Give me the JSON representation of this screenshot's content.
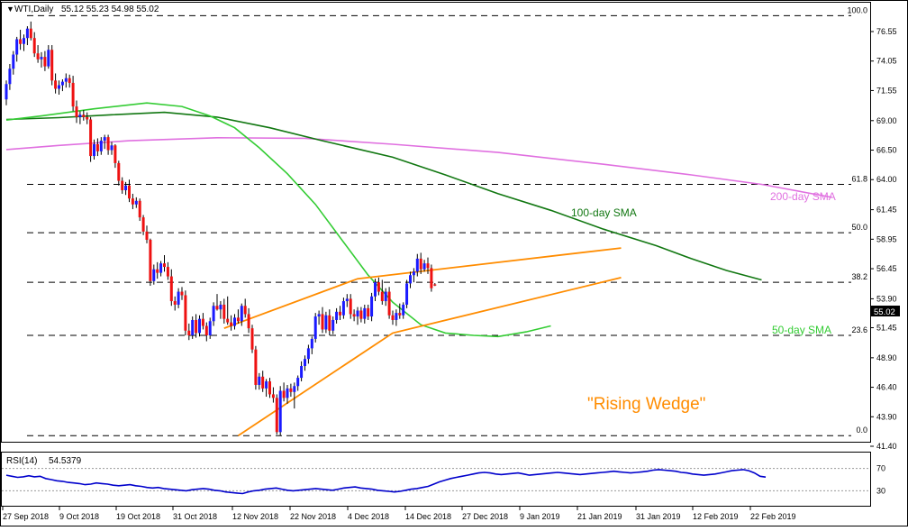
{
  "header": {
    "symbol_label": "WTI,Daily",
    "ohlc": "55.12 55.23 54.98 55.02"
  },
  "rsi_header": {
    "label": "RSI(14)",
    "value": "54.5379"
  },
  "current_price_label": "55.02",
  "annotations": {
    "sma100": "100-day SMA",
    "sma200": "200-day SMA",
    "sma50": "50-day SMA",
    "pattern": "\"Rising Wedge\""
  },
  "colors": {
    "bull": "#1a1aff",
    "bear": "#ee1111",
    "sma50": "#33cc33",
    "sma100": "#117711",
    "sma200": "#e070e0",
    "wedge": "#ff8c00",
    "rsi": "#0000cc"
  },
  "chart_data": {
    "type": "candlestick",
    "title": "WTI,Daily",
    "y_ticks": [
      "76.55",
      "74.05",
      "71.55",
      "69.00",
      "66.50",
      "64.00",
      "61.45",
      "58.95",
      "56.45",
      "53.90",
      "51.45",
      "48.90",
      "46.40",
      "43.90",
      "41.40"
    ],
    "y_range": [
      41.4,
      77.6
    ],
    "x_ticks": [
      "27 Sep 2018",
      "9 Oct 2018",
      "19 Oct 2018",
      "31 Oct 2018",
      "12 Nov 2018",
      "22 Nov 2018",
      "4 Dec 2018",
      "14 Dec 2018",
      "27 Dec 2018",
      "9 Jan 2019",
      "21 Jan 2019",
      "31 Jan 2019",
      "12 Feb 2019",
      "22 Feb 2019"
    ],
    "fib_levels": [
      {
        "label": "100.0",
        "price": 77.9
      },
      {
        "label": "61.8",
        "price": 63.6
      },
      {
        "label": "50.0",
        "price": 59.5
      },
      {
        "label": "38.2",
        "price": 55.3
      },
      {
        "label": "23.6",
        "price": 50.8
      },
      {
        "label": "0.0",
        "price": 42.3
      }
    ],
    "candles": [
      [
        70.8,
        72.4,
        70.3,
        72.1
      ],
      [
        72.1,
        73.8,
        71.6,
        73.4
      ],
      [
        73.4,
        74.9,
        72.9,
        74.6
      ],
      [
        74.6,
        76.1,
        74.0,
        75.9
      ],
      [
        75.9,
        76.7,
        75.0,
        75.5
      ],
      [
        75.5,
        76.3,
        74.9,
        76.0
      ],
      [
        76.0,
        77.0,
        75.4,
        76.8
      ],
      [
        76.8,
        77.4,
        75.8,
        76.0
      ],
      [
        76.0,
        76.5,
        74.4,
        74.7
      ],
      [
        74.7,
        75.4,
        73.9,
        74.2
      ],
      [
        74.2,
        74.8,
        73.5,
        74.4
      ],
      [
        74.4,
        74.9,
        73.2,
        73.6
      ],
      [
        73.6,
        75.4,
        73.4,
        75.0
      ],
      [
        75.0,
        75.4,
        72.0,
        72.4
      ],
      [
        72.4,
        73.0,
        71.3,
        71.7
      ],
      [
        71.7,
        72.4,
        71.2,
        72.0
      ],
      [
        72.0,
        72.5,
        71.5,
        72.3
      ],
      [
        72.3,
        73.0,
        71.8,
        72.6
      ],
      [
        72.6,
        72.9,
        71.8,
        72.2
      ],
      [
        72.2,
        72.8,
        69.8,
        70.2
      ],
      [
        70.2,
        70.7,
        68.8,
        69.3
      ],
      [
        69.3,
        69.8,
        68.7,
        69.5
      ],
      [
        69.5,
        69.9,
        69.0,
        69.3
      ],
      [
        69.3,
        69.7,
        68.7,
        69.1
      ],
      [
        69.1,
        69.3,
        65.5,
        66.0
      ],
      [
        66.0,
        67.4,
        65.7,
        67.0
      ],
      [
        67.0,
        67.5,
        66.0,
        66.4
      ],
      [
        66.4,
        67.6,
        66.1,
        67.3
      ],
      [
        67.3,
        67.8,
        66.6,
        67.6
      ],
      [
        67.6,
        67.8,
        66.1,
        66.5
      ],
      [
        66.5,
        67.2,
        66.1,
        66.9
      ],
      [
        66.9,
        67.0,
        65.0,
        65.4
      ],
      [
        65.4,
        65.6,
        63.5,
        63.9
      ],
      [
        63.9,
        64.2,
        62.8,
        63.1
      ],
      [
        63.1,
        63.8,
        62.7,
        63.5
      ],
      [
        63.5,
        64.0,
        62.1,
        62.4
      ],
      [
        62.4,
        62.8,
        61.5,
        61.9
      ],
      [
        61.9,
        62.5,
        61.6,
        62.2
      ],
      [
        62.2,
        62.4,
        60.5,
        60.8
      ],
      [
        60.8,
        61.0,
        59.3,
        59.6
      ],
      [
        59.6,
        60.1,
        58.6,
        58.9
      ],
      [
        58.9,
        59.0,
        55.0,
        55.4
      ],
      [
        55.4,
        56.8,
        55.1,
        56.4
      ],
      [
        56.4,
        57.0,
        55.6,
        56.1
      ],
      [
        56.1,
        57.1,
        55.8,
        56.9
      ],
      [
        56.9,
        57.6,
        56.2,
        56.6
      ],
      [
        56.6,
        57.0,
        55.5,
        55.8
      ],
      [
        55.8,
        56.4,
        53.3,
        53.7
      ],
      [
        53.7,
        54.1,
        52.9,
        53.4
      ],
      [
        53.4,
        54.8,
        53.1,
        54.5
      ],
      [
        54.5,
        54.9,
        53.8,
        54.2
      ],
      [
        54.2,
        54.6,
        50.8,
        51.2
      ],
      [
        51.2,
        51.8,
        50.4,
        50.8
      ],
      [
        50.8,
        52.4,
        50.5,
        52.1
      ],
      [
        52.1,
        52.6,
        50.6,
        51.0
      ],
      [
        51.0,
        52.5,
        50.7,
        52.2
      ],
      [
        52.2,
        52.7,
        51.3,
        51.6
      ],
      [
        51.6,
        51.9,
        50.3,
        50.8
      ],
      [
        50.8,
        52.3,
        50.5,
        52.0
      ],
      [
        52.0,
        53.6,
        51.6,
        53.3
      ],
      [
        53.3,
        54.3,
        52.9,
        53.0
      ],
      [
        53.0,
        53.7,
        52.2,
        53.4
      ],
      [
        53.4,
        53.9,
        51.8,
        52.2
      ],
      [
        52.2,
        54.1,
        51.7,
        51.9
      ],
      [
        51.9,
        52.5,
        51.2,
        51.6
      ],
      [
        51.6,
        52.6,
        51.3,
        52.3
      ],
      [
        52.3,
        53.0,
        51.8,
        52.0
      ],
      [
        52.0,
        53.5,
        51.6,
        53.3
      ],
      [
        53.3,
        53.9,
        52.3,
        52.6
      ],
      [
        52.6,
        53.1,
        51.0,
        51.4
      ],
      [
        51.4,
        51.7,
        49.3,
        49.6
      ],
      [
        49.6,
        49.9,
        46.2,
        46.6
      ],
      [
        46.6,
        47.6,
        46.2,
        47.3
      ],
      [
        47.3,
        47.8,
        46.0,
        46.3
      ],
      [
        46.3,
        47.1,
        45.6,
        46.9
      ],
      [
        46.9,
        47.2,
        45.5,
        45.8
      ],
      [
        45.8,
        46.4,
        45.1,
        45.5
      ],
      [
        45.5,
        45.8,
        42.4,
        42.6
      ],
      [
        42.6,
        46.5,
        42.3,
        46.1
      ],
      [
        46.1,
        46.8,
        45.2,
        45.5
      ],
      [
        45.5,
        46.6,
        45.0,
        46.3
      ],
      [
        46.3,
        46.7,
        45.6,
        46.0
      ],
      [
        46.0,
        46.8,
        44.6,
        46.5
      ],
      [
        46.5,
        47.4,
        46.1,
        47.2
      ],
      [
        47.2,
        48.6,
        46.9,
        48.2
      ],
      [
        48.2,
        49.1,
        47.8,
        48.8
      ],
      [
        48.8,
        50.0,
        48.4,
        49.7
      ],
      [
        49.7,
        50.7,
        49.2,
        50.5
      ],
      [
        50.5,
        52.7,
        50.2,
        52.4
      ],
      [
        52.4,
        52.9,
        51.7,
        52.6
      ],
      [
        52.6,
        53.2,
        51.0,
        51.3
      ],
      [
        51.3,
        52.8,
        51.0,
        52.5
      ],
      [
        52.5,
        53.0,
        50.8,
        51.2
      ],
      [
        51.2,
        52.4,
        50.9,
        52.1
      ],
      [
        52.1,
        53.1,
        51.8,
        52.8
      ],
      [
        52.8,
        53.3,
        52.1,
        52.5
      ],
      [
        52.5,
        54.0,
        52.2,
        53.7
      ],
      [
        53.7,
        54.3,
        53.2,
        53.9
      ],
      [
        53.9,
        54.3,
        52.2,
        52.6
      ],
      [
        52.6,
        53.0,
        52.0,
        52.4
      ],
      [
        52.4,
        53.2,
        51.7,
        52.9
      ],
      [
        52.9,
        53.2,
        51.9,
        52.2
      ],
      [
        52.2,
        53.4,
        51.8,
        53.1
      ],
      [
        53.1,
        53.4,
        52.1,
        52.4
      ],
      [
        52.4,
        54.4,
        52.0,
        54.1
      ],
      [
        54.1,
        55.6,
        53.7,
        55.3
      ],
      [
        55.3,
        55.7,
        54.2,
        54.5
      ],
      [
        54.5,
        55.5,
        53.4,
        53.7
      ],
      [
        53.7,
        54.8,
        53.3,
        54.5
      ],
      [
        54.5,
        54.9,
        52.2,
        52.5
      ],
      [
        52.5,
        52.9,
        51.7,
        52.1
      ],
      [
        52.1,
        53.0,
        51.6,
        52.7
      ],
      [
        52.7,
        53.5,
        52.2,
        52.5
      ],
      [
        52.5,
        53.6,
        52.2,
        53.4
      ],
      [
        53.4,
        55.5,
        53.1,
        55.2
      ],
      [
        55.2,
        56.2,
        54.8,
        55.9
      ],
      [
        55.9,
        56.5,
        55.3,
        56.2
      ],
      [
        56.2,
        57.7,
        55.8,
        57.3
      ],
      [
        57.3,
        57.8,
        56.0,
        56.4
      ],
      [
        56.4,
        57.2,
        56.2,
        56.9
      ],
      [
        56.9,
        57.4,
        56.0,
        56.5
      ],
      [
        56.5,
        56.8,
        54.5,
        54.8
      ],
      [
        55.12,
        55.23,
        54.98,
        55.02
      ]
    ],
    "sma50": [
      [
        0,
        69.05
      ],
      [
        10,
        69.4
      ],
      [
        25,
        70.0
      ],
      [
        40,
        70.5
      ],
      [
        50,
        70.2
      ],
      [
        58,
        69.4
      ],
      [
        65,
        68.4
      ],
      [
        72,
        66.7
      ],
      [
        80,
        64.5
      ],
      [
        88,
        61.9
      ],
      [
        96,
        58.7
      ],
      [
        103,
        55.9
      ],
      [
        110,
        53.6
      ],
      [
        118,
        51.7
      ],
      [
        125,
        51.0
      ],
      [
        133,
        50.8
      ],
      [
        140,
        50.7
      ],
      [
        148,
        51.1
      ],
      [
        155,
        51.6
      ]
    ],
    "sma100": [
      [
        0,
        69.1
      ],
      [
        15,
        69.25
      ],
      [
        30,
        69.5
      ],
      [
        45,
        69.7
      ],
      [
        60,
        69.3
      ],
      [
        75,
        68.4
      ],
      [
        90,
        67.3
      ],
      [
        110,
        65.9
      ],
      [
        125,
        64.4
      ],
      [
        140,
        62.8
      ],
      [
        155,
        61.4
      ],
      [
        170,
        59.8
      ],
      [
        185,
        58.4
      ],
      [
        195,
        57.3
      ],
      [
        205,
        56.3
      ],
      [
        215,
        55.5
      ]
    ],
    "sma200": [
      [
        0,
        66.55
      ],
      [
        15,
        66.9
      ],
      [
        35,
        67.3
      ],
      [
        60,
        67.55
      ],
      [
        85,
        67.5
      ],
      [
        110,
        67.0
      ],
      [
        140,
        66.3
      ],
      [
        170,
        65.3
      ],
      [
        195,
        64.4
      ],
      [
        215,
        63.6
      ],
      [
        235,
        62.5
      ]
    ],
    "wedge_upper": [
      [
        62,
        51.4
      ],
      [
        100,
        55.6
      ],
      [
        175,
        58.2
      ]
    ],
    "wedge_lower": [
      [
        66,
        42.3
      ],
      [
        110,
        51.0
      ],
      [
        175,
        55.7
      ]
    ],
    "rsi": {
      "name": "RSI(14)",
      "levels": [
        30,
        70
      ],
      "last": 54.5379,
      "values": [
        58,
        56,
        54,
        55,
        57,
        55,
        56,
        52,
        50,
        48,
        47,
        45,
        44,
        43,
        41,
        42,
        44,
        43,
        42,
        40,
        39,
        40,
        41,
        39,
        38,
        36,
        35,
        36,
        34,
        33,
        32,
        31,
        30,
        32,
        33,
        34,
        33,
        31,
        30,
        28,
        27,
        26,
        25,
        28,
        30,
        31,
        33,
        34,
        35,
        33,
        31,
        30,
        31,
        32,
        33,
        34,
        33,
        32,
        31,
        33,
        35,
        36,
        37,
        35,
        34,
        33,
        31,
        30,
        29,
        28,
        29,
        31,
        33,
        34,
        36,
        38,
        42,
        46,
        49,
        52,
        54,
        56,
        58,
        60,
        62,
        63,
        62,
        60,
        59,
        60,
        61,
        62,
        60,
        58,
        59,
        60,
        61,
        62,
        63,
        62,
        61,
        60,
        59,
        60,
        61,
        62,
        63,
        64,
        65,
        64,
        63,
        62,
        63,
        64,
        65,
        67,
        68,
        67,
        66,
        65,
        63,
        62,
        60,
        59,
        58,
        59,
        60,
        62,
        64,
        66,
        67,
        68,
        66,
        62,
        56,
        54.5
      ]
    }
  }
}
